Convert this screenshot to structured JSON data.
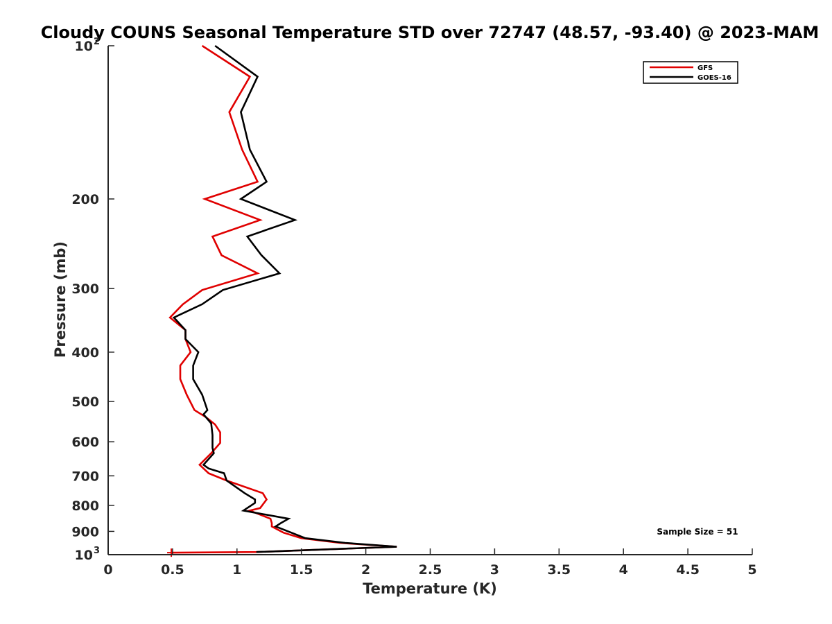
{
  "chart_data": {
    "type": "line",
    "title": "Cloudy COUNS Seasonal Temperature STD over 72747 (48.57, -93.40) @ 2023-MAM",
    "xlabel": "Temperature (K)",
    "ylabel": "Pressure (mb)",
    "xlim": [
      0,
      5
    ],
    "ylim": [
      100,
      1000
    ],
    "yscale": "log",
    "y_reversed": true,
    "x_ticks": [
      "0",
      "0.5",
      "1",
      "1.5",
      "2",
      "2.5",
      "3",
      "3.5",
      "4",
      "4.5",
      "5"
    ],
    "y_ticks": [
      {
        "value": 100,
        "base": "10",
        "exp": "2"
      },
      {
        "value": 200,
        "label": "200"
      },
      {
        "value": 300,
        "label": "300"
      },
      {
        "value": 400,
        "label": "400"
      },
      {
        "value": 500,
        "label": "500"
      },
      {
        "value": 600,
        "label": "600"
      },
      {
        "value": 700,
        "label": "700"
      },
      {
        "value": 800,
        "label": "800"
      },
      {
        "value": 900,
        "label": "900"
      },
      {
        "value": 1000,
        "base": "10",
        "exp": "3"
      }
    ],
    "grid": false,
    "legend_position": "top-right",
    "annotation": "Sample Size = 51",
    "series": [
      {
        "name": "GFS",
        "color": "#e00000",
        "marker_at_end": "+",
        "points": [
          [
            0.73,
            100
          ],
          [
            1.1,
            115
          ],
          [
            0.94,
            135
          ],
          [
            1.04,
            160
          ],
          [
            1.16,
            185
          ],
          [
            0.75,
            200
          ],
          [
            1.18,
            220
          ],
          [
            0.81,
            237
          ],
          [
            0.88,
            258
          ],
          [
            1.16,
            280
          ],
          [
            0.73,
            302
          ],
          [
            0.58,
            322
          ],
          [
            0.48,
            342
          ],
          [
            0.6,
            362
          ],
          [
            0.6,
            377
          ],
          [
            0.64,
            400
          ],
          [
            0.56,
            425
          ],
          [
            0.56,
            452
          ],
          [
            0.61,
            485
          ],
          [
            0.67,
            520
          ],
          [
            0.76,
            537
          ],
          [
            0.83,
            555
          ],
          [
            0.87,
            575
          ],
          [
            0.87,
            603
          ],
          [
            0.8,
            632
          ],
          [
            0.71,
            666
          ],
          [
            0.78,
            692
          ],
          [
            0.92,
            715
          ],
          [
            1.2,
            757
          ],
          [
            1.23,
            779
          ],
          [
            1.18,
            810
          ],
          [
            1.1,
            819
          ],
          [
            1.26,
            850
          ],
          [
            1.27,
            867
          ],
          [
            1.27,
            880
          ],
          [
            1.36,
            905
          ],
          [
            1.5,
            928
          ],
          [
            1.8,
            948
          ],
          [
            2.24,
            965
          ],
          [
            1.15,
            988
          ],
          [
            0.49,
            991
          ]
        ]
      },
      {
        "name": "GOES-16",
        "color": "#000000",
        "points": [
          [
            0.83,
            100
          ],
          [
            1.16,
            115
          ],
          [
            1.03,
            135
          ],
          [
            1.1,
            160
          ],
          [
            1.23,
            185
          ],
          [
            1.03,
            200
          ],
          [
            1.45,
            220
          ],
          [
            1.08,
            237
          ],
          [
            1.19,
            258
          ],
          [
            1.33,
            280
          ],
          [
            0.89,
            302
          ],
          [
            0.73,
            322
          ],
          [
            0.51,
            342
          ],
          [
            0.6,
            362
          ],
          [
            0.6,
            377
          ],
          [
            0.7,
            400
          ],
          [
            0.66,
            425
          ],
          [
            0.66,
            452
          ],
          [
            0.73,
            485
          ],
          [
            0.77,
            520
          ],
          [
            0.74,
            530
          ],
          [
            0.8,
            552
          ],
          [
            0.81,
            582
          ],
          [
            0.81,
            617
          ],
          [
            0.82,
            632
          ],
          [
            0.74,
            666
          ],
          [
            0.78,
            677
          ],
          [
            0.9,
            692
          ],
          [
            0.92,
            715
          ],
          [
            1.06,
            757
          ],
          [
            1.14,
            779
          ],
          [
            1.14,
            791
          ],
          [
            1.05,
            819
          ],
          [
            1.4,
            850
          ],
          [
            1.34,
            867
          ],
          [
            1.3,
            880
          ],
          [
            1.53,
            928
          ],
          [
            1.84,
            948
          ],
          [
            2.24,
            965
          ],
          [
            1.15,
            988
          ]
        ]
      }
    ]
  }
}
